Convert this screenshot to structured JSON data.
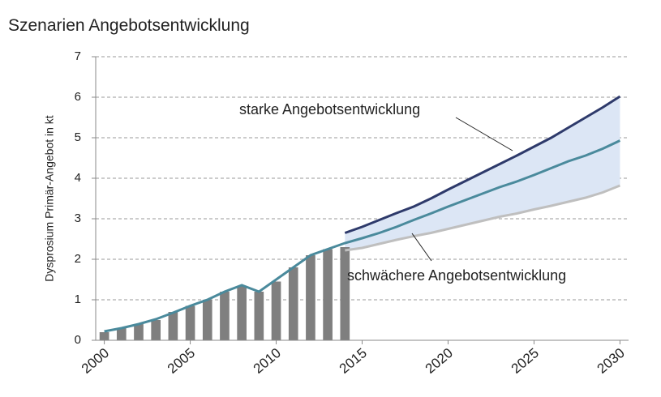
{
  "chart_data": {
    "type": "line",
    "title": "Szenarien Angebotsentwicklung",
    "y_label": "Dysprosium Primär-Angebot in kt",
    "annotations": [
      "starke Angebotsentwicklung",
      "schwächere Angebotsentwicklung"
    ],
    "xlim": [
      1999.5,
      2030.5
    ],
    "xticks": [
      2000,
      2005,
      2010,
      2015,
      2020,
      2025,
      2030
    ],
    "ylim": [
      0,
      7
    ],
    "yticks": [
      0,
      1,
      2,
      3,
      4,
      5,
      6,
      7
    ],
    "grid": true,
    "range_fill": "#dce6f5",
    "bars": {
      "color": "#7f7f7f",
      "x": [
        2000,
        2001,
        2002,
        2003,
        2004,
        2005,
        2006,
        2007,
        2008,
        2009,
        2010,
        2011,
        2012,
        2013,
        2014
      ],
      "values": [
        0.2,
        0.3,
        0.4,
        0.5,
        0.7,
        0.85,
        1.0,
        1.2,
        1.35,
        1.2,
        1.45,
        1.8,
        2.1,
        2.25,
        2.3
      ]
    },
    "series": [
      {
        "color": "#4a8a9c",
        "x": [
          2000,
          2001,
          2002,
          2003,
          2004,
          2005,
          2006,
          2007,
          2008,
          2009,
          2010,
          2011,
          2012,
          2013,
          2014,
          2015,
          2016,
          2017,
          2018,
          2019,
          2020,
          2021,
          2022,
          2023,
          2024,
          2025,
          2026,
          2027,
          2028,
          2029,
          2030
        ],
        "values": [
          0.22,
          0.3,
          0.4,
          0.52,
          0.68,
          0.85,
          1.0,
          1.2,
          1.36,
          1.2,
          1.5,
          1.8,
          2.1,
          2.25,
          2.4,
          2.52,
          2.65,
          2.8,
          2.97,
          3.13,
          3.3,
          3.46,
          3.62,
          3.78,
          3.92,
          4.08,
          4.25,
          4.42,
          4.56,
          4.73,
          4.93
        ]
      },
      {
        "color": "#2e3a6b",
        "x": [
          2014,
          2015,
          2016,
          2017,
          2018,
          2019,
          2020,
          2021,
          2022,
          2023,
          2024,
          2025,
          2026,
          2027,
          2028,
          2029,
          2030
        ],
        "values": [
          2.65,
          2.8,
          2.97,
          3.14,
          3.3,
          3.5,
          3.72,
          3.93,
          4.14,
          4.35,
          4.56,
          4.78,
          5.0,
          5.25,
          5.5,
          5.75,
          6.02
        ]
      },
      {
        "color": "#bfbfbf",
        "x": [
          2014,
          2015,
          2016,
          2017,
          2018,
          2019,
          2020,
          2021,
          2022,
          2023,
          2024,
          2025,
          2026,
          2027,
          2028,
          2029,
          2030
        ],
        "values": [
          2.22,
          2.28,
          2.38,
          2.48,
          2.57,
          2.65,
          2.75,
          2.85,
          2.95,
          3.05,
          3.13,
          3.23,
          3.32,
          3.42,
          3.52,
          3.65,
          3.82
        ]
      }
    ]
  }
}
